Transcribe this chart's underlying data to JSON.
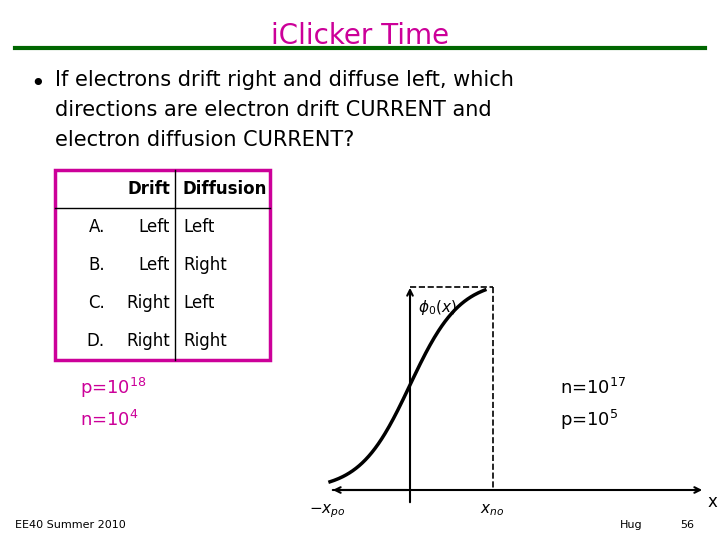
{
  "title": "iClicker Time",
  "title_color": "#CC0099",
  "title_fontsize": 20,
  "line_color": "#006600",
  "bg_color": "#FFFFFF",
  "bullet_text_line1": "If electrons drift right and diffuse left, which",
  "bullet_text_line2": "directions are electron drift CURRENT and",
  "bullet_text_line3": "electron diffusion CURRENT?",
  "table_rows": [
    [
      "",
      "Drift",
      "Diffusion"
    ],
    [
      "A.",
      "Left",
      "Left"
    ],
    [
      "B.",
      "Left",
      "Right"
    ],
    [
      "C.",
      "Right",
      "Left"
    ],
    [
      "D.",
      "Right",
      "Right"
    ]
  ],
  "table_border_color": "#CC0099",
  "magenta_color": "#CC0099",
  "footer_left": "EE40 Summer 2010",
  "footer_right_name": "Hug",
  "footer_right_num": "56"
}
